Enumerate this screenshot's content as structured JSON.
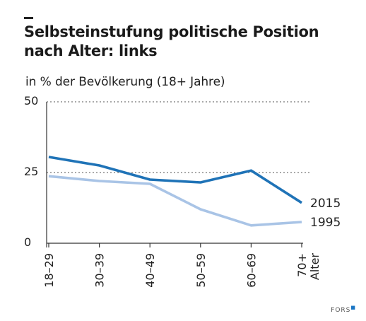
{
  "header": {
    "title_line1": "Selbsteinstufung politische Position",
    "title_line2": "nach Alter: links",
    "subtitle": "in % der Bevölkerung (18+ Jahre)"
  },
  "credit": {
    "label": "FORS"
  },
  "colors": {
    "series_2015": "#1f73b7",
    "series_1995": "#a9c4e6",
    "axis": "#333333",
    "grid": "#555555"
  },
  "chart_data": {
    "type": "line",
    "title": "Selbsteinstufung politische Position nach Alter: links",
    "subtitle": "in % der Bevölkerung (18+ Jahre)",
    "categories": [
      "18–29",
      "30–39",
      "40–49",
      "50–59",
      "60–69",
      "70+"
    ],
    "xlabel": "Alter",
    "ylabel": "",
    "ylim": [
      0,
      50
    ],
    "yticks": [
      0,
      25,
      50
    ],
    "grid": "dotted lines at 25 and 50",
    "series": [
      {
        "name": "2015",
        "values": [
          30.5,
          27.5,
          22.5,
          21.5,
          25.7,
          14.3
        ],
        "color": "#1f73b7"
      },
      {
        "name": "1995",
        "values": [
          23.7,
          22.0,
          21.0,
          12.0,
          6.3,
          7.5
        ],
        "color": "#a9c4e6"
      }
    ]
  }
}
